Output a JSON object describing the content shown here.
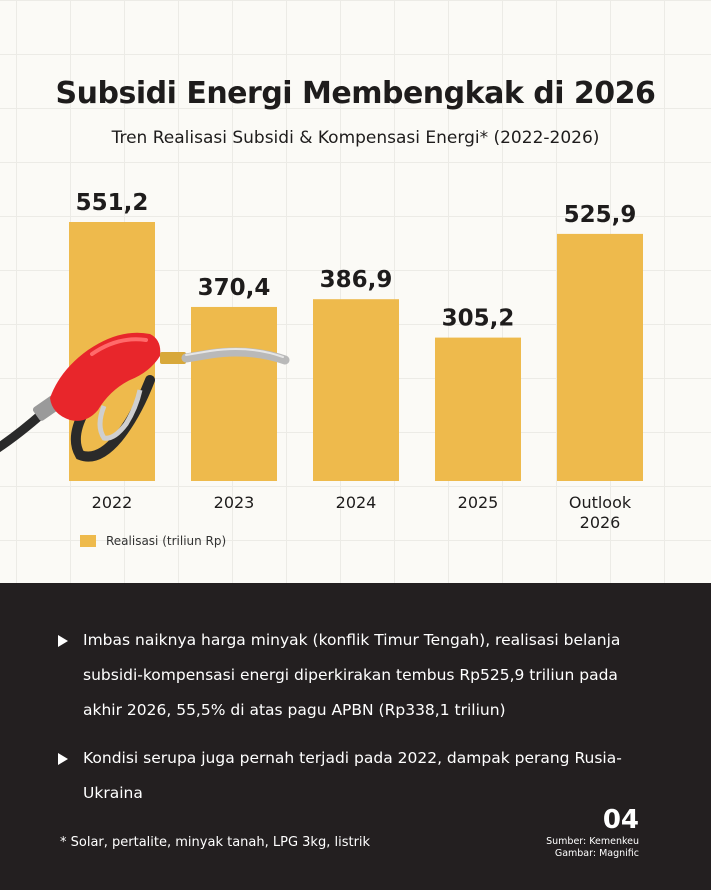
{
  "header": {
    "title": "Subsidi Energi Membengkak di 2026",
    "subtitle": "Tren Realisasi Subsidi & Kompensasi Energi* (2022-2026)"
  },
  "chart_data": {
    "type": "bar",
    "title": "Subsidi Energi Membengkak di 2026",
    "subtitle": "Tren Realisasi Subsidi & Kompensasi Energi* (2022-2026)",
    "categories": [
      [
        "2022"
      ],
      [
        "2023"
      ],
      [
        "2024"
      ],
      [
        "2025"
      ],
      [
        "Outlook",
        "2026"
      ]
    ],
    "series": [
      {
        "name": "Realisasi (triliun Rp)",
        "values": [
          551.2,
          370.4,
          386.9,
          305.2,
          525.9
        ],
        "labels": [
          "551,2",
          "370,4",
          "386,9",
          "305,2",
          "525,9"
        ]
      }
    ],
    "bar_color": "#eeba4c",
    "legend": "bottom-left",
    "grid": true
  },
  "legend": {
    "label": "Realisasi (triliun Rp)",
    "color": "#eeba4c"
  },
  "notes": {
    "bullets": [
      "Imbas naiknya harga minyak (konflik Timur Tengah), realisasi belanja subsidi-kompensasi energi diperkirakan tembus Rp525,9 triliun pada akhir 2026, 55,5% di atas pagu APBN (Rp338,1 triliun)",
      "Kondisi serupa juga pernah terjadi pada 2022, dampak perang Rusia-Ukraina"
    ],
    "footnote": "* Solar, pertalite, minyak tanah, LPG 3kg, listrik"
  },
  "footer": {
    "page_number": "04",
    "source": "Sumber: Kemenkeu",
    "image_credit": "Gambar: Magnific"
  },
  "icons": {
    "illustration": "fuel-nozzle-icon",
    "bullet": "triangle-bullet-icon"
  },
  "colors": {
    "dark_panel": "#231f20",
    "bar": "#eeba4c",
    "nozzle": "#e8262b"
  }
}
